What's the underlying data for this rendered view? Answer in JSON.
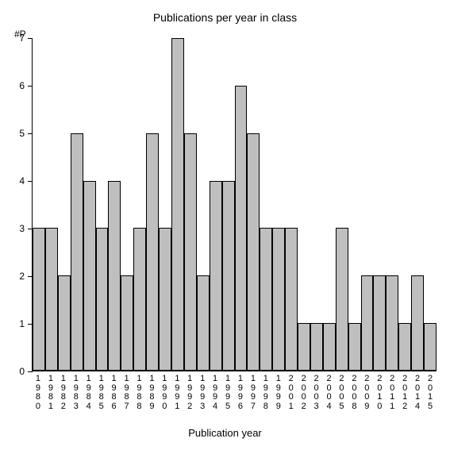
{
  "chart": {
    "type": "bar",
    "title": "Publications per year in class",
    "title_fontsize": 14,
    "y_axis_label": "#P",
    "x_axis_title": "Publication year",
    "label_fontsize": 12,
    "background_color": "#ffffff",
    "bar_fill_color": "#bfbfbf",
    "bar_border_color": "#000000",
    "axis_color": "#000000",
    "ylim": [
      0,
      7
    ],
    "ytick_step": 1,
    "yticks": [
      0,
      1,
      2,
      3,
      4,
      5,
      6,
      7
    ],
    "categories": [
      "1980",
      "1981",
      "1982",
      "1983",
      "1984",
      "1985",
      "1986",
      "1987",
      "1988",
      "1989",
      "1990",
      "1991",
      "1992",
      "1993",
      "1994",
      "1995",
      "1996",
      "1997",
      "1998",
      "1999",
      "2001",
      "2002",
      "2003",
      "2004",
      "2005",
      "2008",
      "2009",
      "2010",
      "2011",
      "2012",
      "2014",
      "2015"
    ],
    "values": [
      3,
      3,
      2,
      5,
      4,
      3,
      4,
      2,
      3,
      5,
      3,
      7,
      5,
      2,
      4,
      4,
      6,
      5,
      3,
      3,
      3,
      1,
      1,
      1,
      3,
      1,
      2,
      2,
      2,
      1,
      2,
      1
    ]
  }
}
